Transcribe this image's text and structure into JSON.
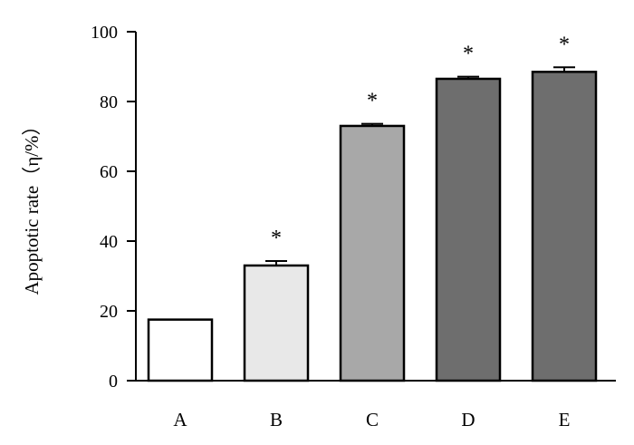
{
  "chart_data": {
    "type": "bar",
    "ylabel": "Apoptotic rate（η/%）",
    "ylim": [
      0,
      100
    ],
    "yticks": [
      0,
      20,
      40,
      60,
      80,
      100
    ],
    "grid": false,
    "categories": [
      "A",
      "B",
      "C",
      "D",
      "E"
    ],
    "values": [
      17.5,
      33.0,
      73.0,
      86.5,
      88.5
    ],
    "errors": [
      0,
      1.3,
      0.6,
      0.6,
      1.3
    ],
    "significance": [
      "",
      "*",
      "*",
      "*",
      "*"
    ],
    "colors": [
      "#ffffff",
      "#e8e8e8",
      "#a8a8a8",
      "#6e6e6e",
      "#6e6e6e"
    ]
  }
}
